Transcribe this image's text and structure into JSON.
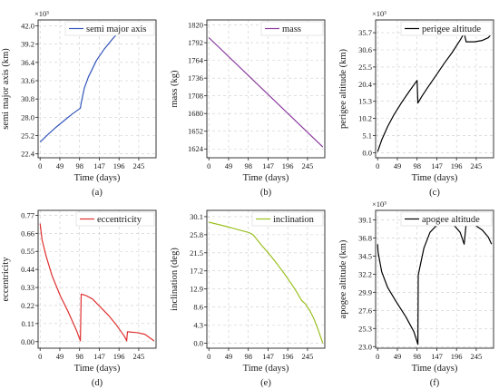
{
  "chart_data": [
    {
      "type": "line",
      "caption": "(a)",
      "xlabel": "Time (days)",
      "ylabel": "semi major axis (km)",
      "exponent": "×10³",
      "xlim": [
        -5,
        288
      ],
      "ylim": [
        21.8,
        42.9
      ],
      "xticks": [
        0,
        49,
        98,
        147,
        196,
        245
      ],
      "xtick_labels": [
        "0",
        "49",
        "98",
        "147",
        "196",
        "245"
      ],
      "yticks": [
        22.4,
        25.2,
        28.0,
        30.8,
        33.6,
        36.4,
        39.2,
        42.0
      ],
      "ytick_labels": [
        "22.4",
        "25.2",
        "28.0",
        "30.8",
        "33.6",
        "36.4",
        "39.2",
        "42.0"
      ],
      "legend_position": "top-right",
      "series": [
        {
          "name": "semi major axis",
          "color": "#3355bb",
          "x": [
            0,
            20,
            40,
            60,
            80,
            100,
            102,
            110,
            120,
            140,
            160,
            180,
            200,
            215,
            230,
            250,
            283
          ],
          "y": [
            24.2,
            25.4,
            26.5,
            27.5,
            28.5,
            29.4,
            30.2,
            32.5,
            34.2,
            36.7,
            38.5,
            40.0,
            41.4,
            42.0,
            42.0,
            42.0,
            42.0
          ]
        }
      ]
    },
    {
      "type": "line",
      "caption": "(b)",
      "xlabel": "Time (days)",
      "ylabel": "mass (kg)",
      "exponent": "",
      "xlim": [
        -5,
        288
      ],
      "ylim": [
        1610,
        1828
      ],
      "xticks": [
        0,
        49,
        98,
        147,
        196,
        245
      ],
      "xtick_labels": [
        "0",
        "49",
        "98",
        "147",
        "196",
        "245"
      ],
      "yticks": [
        1624,
        1652,
        1680,
        1708,
        1736,
        1764,
        1792,
        1820
      ],
      "ytick_labels": [
        "1624",
        "1652",
        "1680",
        "1708",
        "1736",
        "1764",
        "1792",
        "1820"
      ],
      "legend_position": "top-right",
      "series": [
        {
          "name": "mass",
          "color": "#8a3a9e",
          "x": [
            0,
            283
          ],
          "y": [
            1800,
            1627
          ]
        }
      ]
    },
    {
      "type": "line",
      "caption": "(c)",
      "xlabel": "Time (days)",
      "ylabel": "perigee altitude (km)",
      "exponent": "×10³",
      "xlim": [
        -5,
        288
      ],
      "ylim": [
        -1.5,
        39.5
      ],
      "xticks": [
        0,
        49,
        98,
        147,
        196,
        245
      ],
      "xtick_labels": [
        "0",
        "49",
        "98",
        "147",
        "196",
        "245"
      ],
      "yticks": [
        0.0,
        5.1,
        10.2,
        15.3,
        20.4,
        25.5,
        30.6,
        35.7
      ],
      "ytick_labels": [
        "0.0",
        "5.1",
        "10.2",
        "15.3",
        "20.4",
        "25.5",
        "30.6",
        "35.7"
      ],
      "legend_position": "top-right",
      "series": [
        {
          "name": "perigee altitude",
          "color": "#000000",
          "x": [
            0,
            10,
            25,
            40,
            60,
            80,
            98,
            100,
            110,
            125,
            145,
            165,
            185,
            205,
            215,
            220,
            240,
            260,
            275,
            283
          ],
          "y": [
            0.3,
            3.8,
            7.8,
            11.2,
            15.0,
            18.5,
            21.5,
            14.8,
            16.8,
            19.5,
            23.0,
            26.5,
            29.8,
            33.5,
            35.6,
            33.0,
            33.0,
            33.4,
            34.2,
            35.4
          ]
        }
      ]
    },
    {
      "type": "line",
      "caption": "(d)",
      "xlabel": "Time (days)",
      "ylabel": "eccentricity",
      "exponent": "",
      "xlim": [
        -5,
        288
      ],
      "ylim": [
        -0.04,
        0.8
      ],
      "xticks": [
        0,
        49,
        98,
        147,
        196,
        245
      ],
      "xtick_labels": [
        "0",
        "49",
        "98",
        "147",
        "196",
        "245"
      ],
      "yticks": [
        0.0,
        0.11,
        0.22,
        0.33,
        0.44,
        0.55,
        0.66,
        0.77
      ],
      "ytick_labels": [
        "0.00",
        "0.11",
        "0.22",
        "0.33",
        "0.44",
        "0.55",
        "0.66",
        "0.77"
      ],
      "legend_position": "top-right",
      "series": [
        {
          "name": "eccentricity",
          "color": "#e03030",
          "x": [
            0,
            5,
            15,
            30,
            50,
            70,
            90,
            100,
            102,
            115,
            130,
            150,
            170,
            190,
            210,
            215,
            217,
            240,
            260,
            283
          ],
          "y": [
            0.72,
            0.62,
            0.52,
            0.4,
            0.28,
            0.18,
            0.07,
            0.005,
            0.29,
            0.28,
            0.26,
            0.21,
            0.16,
            0.1,
            0.03,
            0.005,
            0.06,
            0.055,
            0.045,
            0.005
          ]
        }
      ]
    },
    {
      "type": "line",
      "caption": "(e)",
      "xlabel": "Time (days)",
      "ylabel": "inclination (deg)",
      "exponent": "",
      "xlim": [
        -5,
        288
      ],
      "ylim": [
        -1.2,
        31.6
      ],
      "xticks": [
        0,
        49,
        98,
        147,
        196,
        245
      ],
      "xtick_labels": [
        "0",
        "49",
        "98",
        "147",
        "196",
        "245"
      ],
      "yticks": [
        0.0,
        4.3,
        8.6,
        12.9,
        17.2,
        21.5,
        25.8,
        30.1
      ],
      "ytick_labels": [
        "0.0",
        "4.3",
        "8.6",
        "12.9",
        "17.2",
        "21.5",
        "25.8",
        "30.1"
      ],
      "legend_position": "top-right",
      "series": [
        {
          "name": "inclination",
          "color": "#9ac020",
          "x": [
            0,
            50,
            100,
            110,
            130,
            150,
            170,
            190,
            210,
            220,
            230,
            240,
            250,
            260,
            270,
            283
          ],
          "y": [
            28.8,
            27.6,
            26.3,
            25.8,
            23.4,
            21.2,
            18.8,
            16.2,
            13.4,
            11.9,
            10.2,
            9.3,
            7.9,
            6.0,
            3.6,
            0.0
          ]
        }
      ]
    },
    {
      "type": "line",
      "caption": "(f)",
      "xlabel": "Time (days)",
      "ylabel": "apogee altitude (km)",
      "exponent": "×10³",
      "xlim": [
        -5,
        288
      ],
      "ylim": [
        22.8,
        40.3
      ],
      "xticks": [
        0,
        49,
        98,
        147,
        196,
        245
      ],
      "xtick_labels": [
        "0",
        "49",
        "98",
        "147",
        "196",
        "245"
      ],
      "yticks": [
        23.0,
        25.3,
        27.6,
        29.9,
        32.2,
        34.5,
        36.8,
        39.1
      ],
      "ytick_labels": [
        "23.0",
        "25.3",
        "27.6",
        "29.9",
        "32.2",
        "34.5",
        "36.8",
        "39.1"
      ],
      "legend_position": "top-right",
      "series": [
        {
          "name": "apogee altitude",
          "color": "#000000",
          "x": [
            0,
            1,
            10,
            25,
            45,
            70,
            90,
            100,
            101,
            115,
            130,
            150,
            170,
            190,
            205,
            215,
            220,
            240,
            260,
            275,
            283
          ],
          "y": [
            36.0,
            35.0,
            32.5,
            30.5,
            28.8,
            26.8,
            24.9,
            23.3,
            32.1,
            35.5,
            37.5,
            38.6,
            38.9,
            38.4,
            37.5,
            36.0,
            38.6,
            38.5,
            37.8,
            36.9,
            36.0
          ]
        }
      ]
    }
  ]
}
